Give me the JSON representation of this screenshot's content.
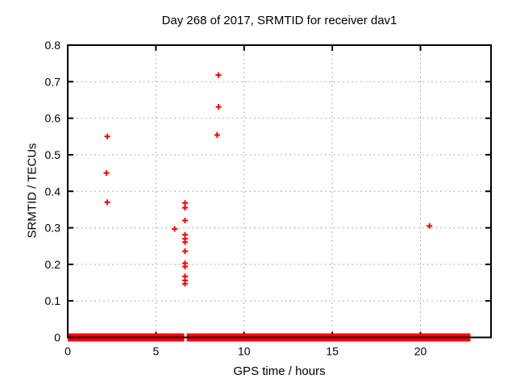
{
  "chart": {
    "title": "Day 268 of 2017, SRMTID for receiver dav1",
    "xlabel": "GPS time / hours",
    "ylabel": "SRMTID / TECUs"
  },
  "chart_data": {
    "type": "scatter",
    "title": "Day 268 of 2017, SRMTID for receiver dav1",
    "xlabel": "GPS time / hours",
    "ylabel": "SRMTID / TECUs",
    "xlim": [
      0,
      24
    ],
    "ylim": [
      0,
      0.8
    ],
    "xticks": [
      {
        "v": 0,
        "label": "0"
      },
      {
        "v": 5,
        "label": "5"
      },
      {
        "v": 10,
        "label": "10"
      },
      {
        "v": 15,
        "label": "15"
      },
      {
        "v": 20,
        "label": "20"
      }
    ],
    "yticks": [
      {
        "v": 0.0,
        "label": "0"
      },
      {
        "v": 0.1,
        "label": "0.1"
      },
      {
        "v": 0.2,
        "label": "0.2"
      },
      {
        "v": 0.3,
        "label": "0.3"
      },
      {
        "v": 0.4,
        "label": "0.4"
      },
      {
        "v": 0.5,
        "label": "0.5"
      },
      {
        "v": 0.6,
        "label": "0.6"
      },
      {
        "v": 0.7,
        "label": "0.7"
      },
      {
        "v": 0.8,
        "label": "0.8"
      }
    ],
    "grid": true,
    "legend": "none",
    "marker": {
      "shape": "plus",
      "color": "#ff0000"
    },
    "series": [
      {
        "name": "SRMTID",
        "points": [
          [
            2.24,
            0.55
          ],
          [
            2.19,
            0.45
          ],
          [
            2.24,
            0.37
          ],
          [
            6.06,
            0.297
          ],
          [
            6.65,
            0.368
          ],
          [
            6.65,
            0.355
          ],
          [
            6.65,
            0.32
          ],
          [
            6.65,
            0.281
          ],
          [
            6.65,
            0.27
          ],
          [
            6.65,
            0.261
          ],
          [
            6.65,
            0.236
          ],
          [
            6.65,
            0.203
          ],
          [
            6.65,
            0.194
          ],
          [
            6.65,
            0.167
          ],
          [
            6.65,
            0.156
          ],
          [
            6.65,
            0.147
          ],
          [
            8.54,
            0.718
          ],
          [
            8.55,
            0.631
          ],
          [
            8.47,
            0.554
          ],
          [
            20.51,
            0.305
          ]
        ]
      }
    ],
    "zero_line_band": {
      "y": 0,
      "segments": [
        [
          0,
          6.6
        ],
        [
          6.75,
          22.83
        ]
      ],
      "description": "dense run of overlapping + markers at y = 0, gap near x = 6.7"
    },
    "colors": {
      "marker": "#ff0000",
      "grid": "#b0b0b0",
      "axis": "#000000",
      "background": "#ffffff"
    }
  }
}
